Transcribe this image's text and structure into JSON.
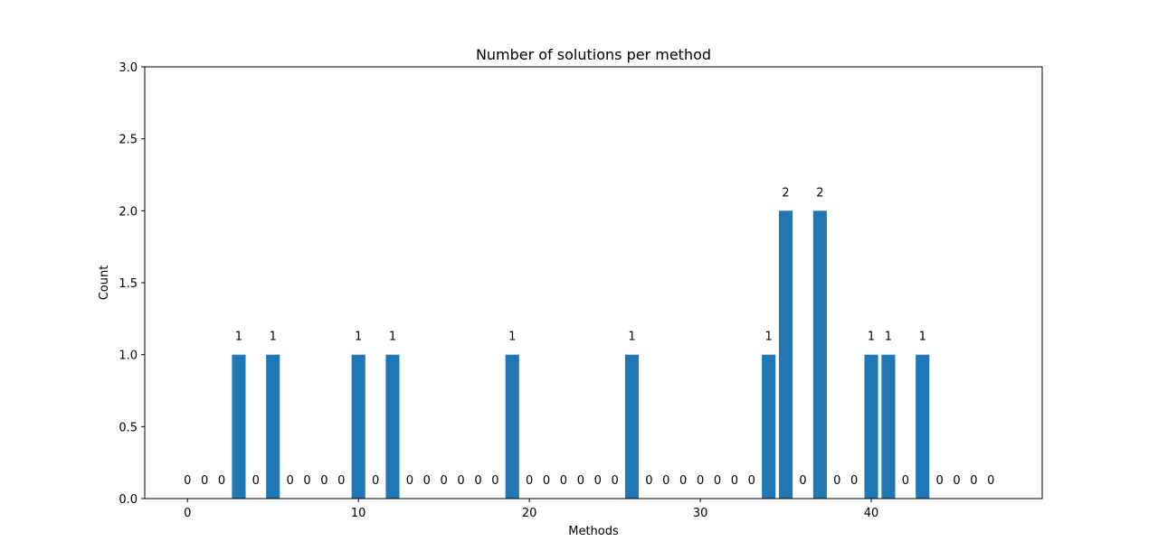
{
  "chart_data": {
    "type": "bar",
    "title": "Number of solutions per method",
    "xlabel": "Methods",
    "ylabel": "Count",
    "x": [
      0,
      1,
      2,
      3,
      4,
      5,
      6,
      7,
      8,
      9,
      10,
      11,
      12,
      13,
      14,
      15,
      16,
      17,
      18,
      19,
      20,
      21,
      22,
      23,
      24,
      25,
      26,
      27,
      28,
      29,
      30,
      31,
      32,
      33,
      34,
      35,
      36,
      37,
      38,
      39,
      40,
      41,
      42,
      43,
      44,
      45,
      46,
      47
    ],
    "values": [
      0,
      0,
      0,
      1,
      0,
      1,
      0,
      0,
      0,
      0,
      1,
      0,
      1,
      0,
      0,
      0,
      0,
      0,
      0,
      1,
      0,
      0,
      0,
      0,
      0,
      0,
      1,
      0,
      0,
      0,
      0,
      0,
      0,
      0,
      1,
      2,
      0,
      2,
      0,
      0,
      1,
      1,
      0,
      1,
      0,
      0,
      0,
      0
    ],
    "data_labels": [
      "0",
      "0",
      "0",
      "1",
      "0",
      "1",
      "0",
      "0",
      "0",
      "0",
      "1",
      "0",
      "1",
      "0",
      "0",
      "0",
      "0",
      "0",
      "0",
      "1",
      "0",
      "0",
      "0",
      "0",
      "0",
      "0",
      "1",
      "0",
      "0",
      "0",
      "0",
      "0",
      "0",
      "0",
      "1",
      "2",
      "0",
      "2",
      "0",
      "0",
      "1",
      "1",
      "0",
      "1",
      "0",
      "0",
      "0",
      "0"
    ],
    "xlim": [
      -2.5,
      50.0
    ],
    "ylim": [
      0,
      3.0
    ],
    "xticks": [
      0,
      10,
      20,
      30,
      40
    ],
    "xtick_labels": [
      "0",
      "10",
      "20",
      "30",
      "40"
    ],
    "yticks": [
      0,
      0.5,
      1.0,
      1.5,
      2.0,
      2.5,
      3.0
    ],
    "ytick_labels": [
      "0.0",
      "0.5",
      "1.0",
      "1.5",
      "2.0",
      "2.5",
      "3.0"
    ],
    "bar_color": "#1f77b4",
    "grid": false,
    "legend": "none"
  }
}
